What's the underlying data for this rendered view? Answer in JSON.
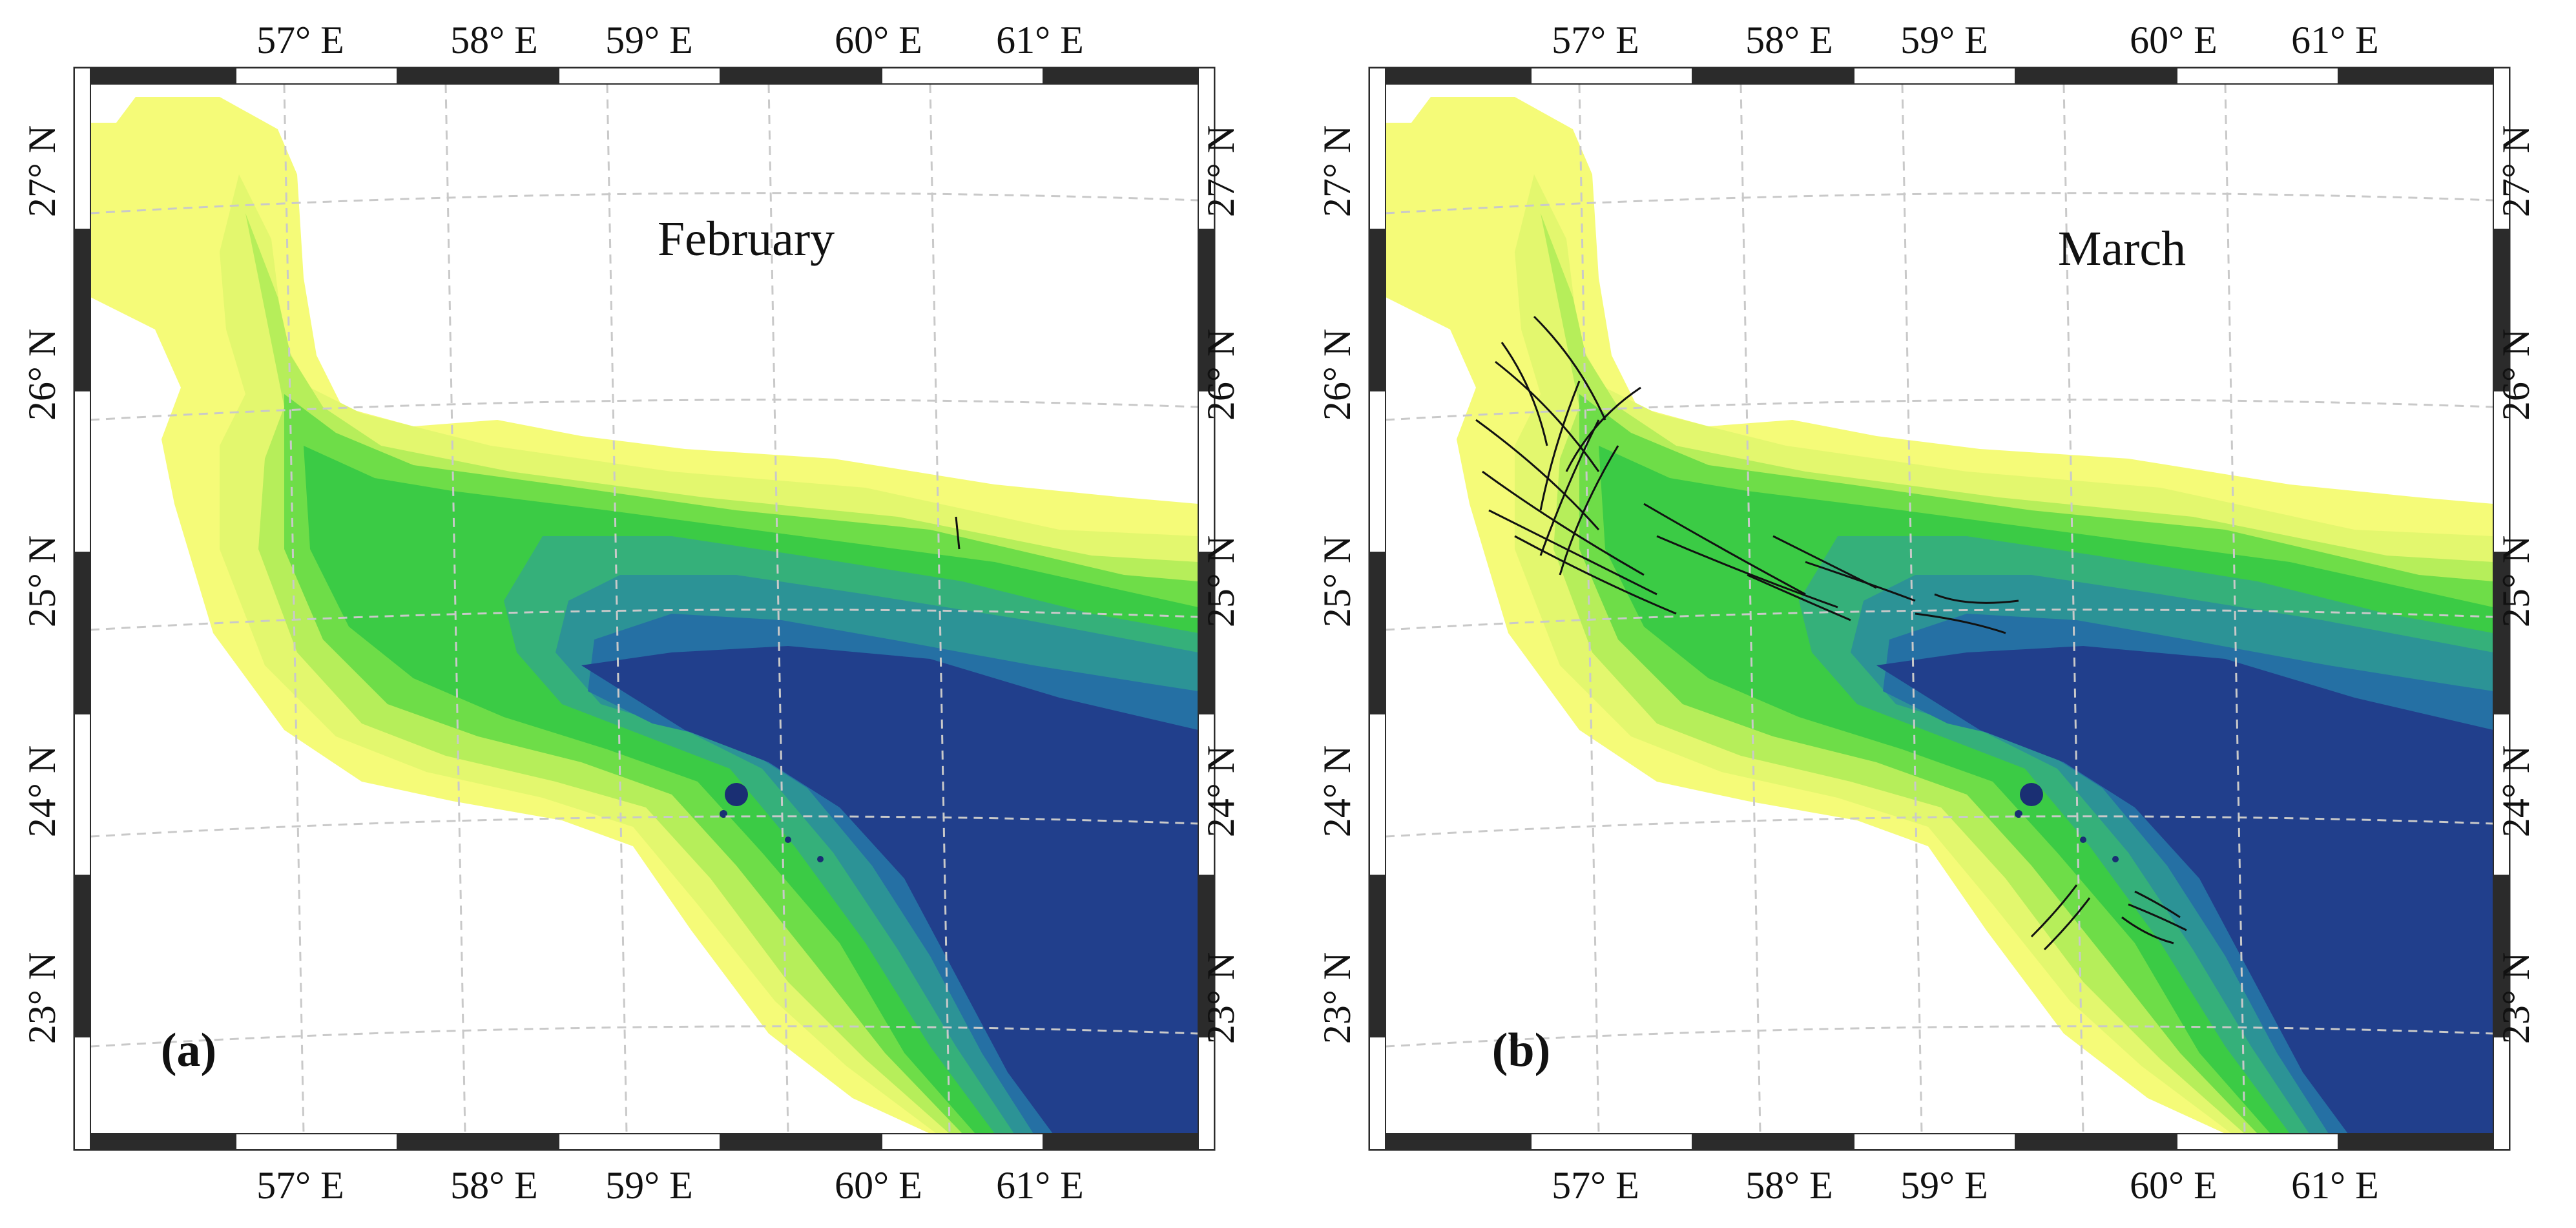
{
  "panels": [
    {
      "id": "a",
      "month_label": "February",
      "panel_label": "(a)",
      "lon_ticks": [
        "57° E",
        "58° E",
        "59° E",
        "60° E",
        "61° E"
      ],
      "lat_ticks": [
        "27° N",
        "26° N",
        "25° N",
        "24° N",
        "23° N"
      ],
      "has_fronts": false
    },
    {
      "id": "b",
      "month_label": "March",
      "panel_label": "(b)",
      "lon_ticks": [
        "57° E",
        "58° E",
        "59° E",
        "60° E",
        "61° E"
      ],
      "lat_ticks": [
        "27° N",
        "26° N",
        "25° N",
        "24° N",
        "23° N"
      ],
      "has_fronts": true
    }
  ],
  "colors": {
    "land": "#ffffff",
    "shallow_yellow": "#f5fb78",
    "pale_yellow": "#e3f76e",
    "light_green": "#b6ee5a",
    "green": "#6edd48",
    "mid_green": "#3bcb45",
    "teal_green": "#35b07a",
    "teal": "#2c9396",
    "blue_teal": "#2570a4",
    "deep_blue": "#213f8c",
    "front_lines": "#111111",
    "frame_dark": "#2b2b2b"
  }
}
